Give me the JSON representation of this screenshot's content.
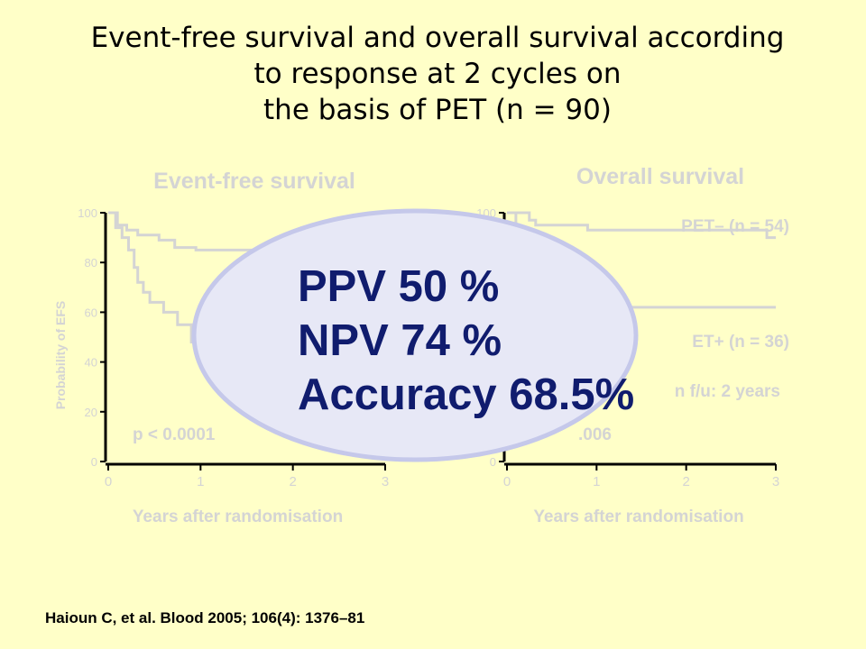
{
  "slide": {
    "title_lines": [
      "Event-free survival and overall survival according",
      "to response at 2 cycles on",
      "the basis of PET (n = 90)"
    ],
    "citation": "Haioun C, et al. Blood 2005; 106(4): 1376–81"
  },
  "overlay": {
    "lines": [
      "PPV 50 %",
      "NPV 74 %",
      "Accuracy 68.5%"
    ]
  },
  "colors": {
    "background": "#ffffc8",
    "faded": "#d4d4d4",
    "overlay_fill": "#e7e8f6",
    "overlay_stroke": "#c5c8ea",
    "overlay_text": "#101c6e"
  },
  "chart_data": [
    {
      "type": "line",
      "title": "Event-free survival",
      "xlabel": "Years after randomisation",
      "ylabel": "Probability of EFS",
      "xlim": [
        0,
        3
      ],
      "ylim": [
        0,
        100
      ],
      "x_ticks": [
        "0",
        "1",
        "2",
        "3"
      ],
      "y_ticks": [
        "0",
        "20",
        "40",
        "60",
        "80",
        "100"
      ],
      "annotations": [
        "p < 0.0001"
      ],
      "series": [
        {
          "x": [
            0,
            0.1,
            0.1,
            0.2,
            0.2,
            0.32,
            0.32,
            0.55,
            0.55,
            0.72,
            0.72,
            0.95,
            0.95,
            1.6
          ],
          "y": [
            100,
            100,
            95,
            95,
            93,
            93,
            91,
            91,
            89,
            89,
            86,
            86,
            85,
            85
          ]
        },
        {
          "x": [
            0,
            0.08,
            0.08,
            0.15,
            0.15,
            0.22,
            0.22,
            0.28,
            0.28,
            0.32,
            0.32,
            0.38,
            0.38,
            0.45,
            0.45,
            0.6,
            0.6,
            0.75,
            0.75,
            0.9,
            0.9,
            1.6
          ],
          "y": [
            100,
            100,
            94,
            94,
            90,
            90,
            85,
            85,
            78,
            78,
            72,
            72,
            68,
            68,
            64,
            64,
            60,
            60,
            55,
            55,
            48,
            48
          ]
        }
      ]
    },
    {
      "type": "line",
      "title": "Overall survival",
      "xlabel": "Years after randomisation",
      "ylabel": "",
      "xlim": [
        0,
        3
      ],
      "ylim": [
        0,
        100
      ],
      "x_ticks": [
        "0",
        "1",
        "2",
        "3"
      ],
      "y_ticks": [
        "0",
        "100"
      ],
      "annotations": [
        "p = 0.006",
        "Median f/u: 2 years"
      ],
      "visible_label_fragments": [
        ".006",
        "n f/u: 2 years"
      ],
      "series": [
        {
          "name": "PET– (n = 54)",
          "x": [
            0,
            0.25,
            0.25,
            0.32,
            0.32,
            0.9,
            0.9,
            2.9,
            2.9,
            3.0
          ],
          "y": [
            100,
            100,
            97,
            97,
            95,
            95,
            93,
            93,
            90,
            90
          ]
        },
        {
          "name": "PET+ (n = 36)",
          "label_visible_fragment": "ET+ (n = 36)",
          "x": [
            0,
            0.1,
            0.1,
            3.0
          ],
          "y": [
            100,
            100,
            62,
            62
          ]
        }
      ]
    }
  ]
}
